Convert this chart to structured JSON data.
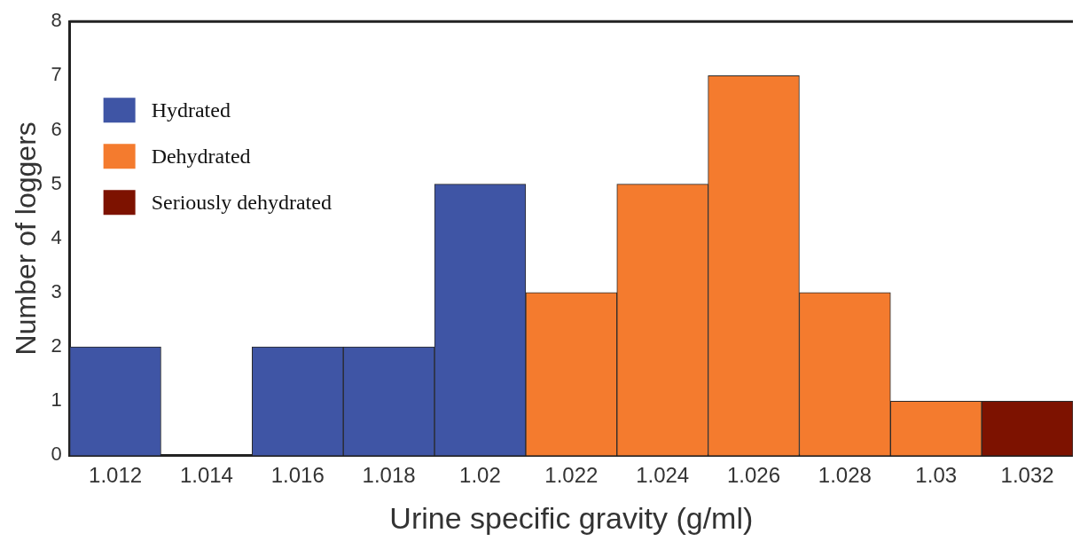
{
  "chart_data": {
    "type": "bar",
    "xlabel": "Urine specific gravity (g/ml)",
    "ylabel": "Number of loggers",
    "categories": [
      "1.012",
      "1.014",
      "1.016",
      "1.018",
      "1.02",
      "1.022",
      "1.024",
      "1.026",
      "1.028",
      "1.03",
      "1.032"
    ],
    "series": [
      {
        "name": "Hydrated",
        "color": "#3f55a5",
        "values": [
          2,
          0,
          2,
          2,
          5,
          null,
          null,
          null,
          null,
          null,
          null
        ]
      },
      {
        "name": "Dehydrated",
        "color": "#f47b2e",
        "values": [
          null,
          null,
          null,
          null,
          null,
          3,
          5,
          7,
          3,
          1,
          null
        ]
      },
      {
        "name": "Seriously dehydrated",
        "color": "#7d1200",
        "values": [
          null,
          null,
          null,
          null,
          null,
          null,
          null,
          null,
          null,
          null,
          1
        ]
      }
    ],
    "stacked": true,
    "ylim": [
      0,
      8
    ],
    "yticks": [
      0,
      1,
      2,
      3,
      4,
      5,
      6,
      7,
      8
    ],
    "grid": false,
    "legend": "top left"
  }
}
